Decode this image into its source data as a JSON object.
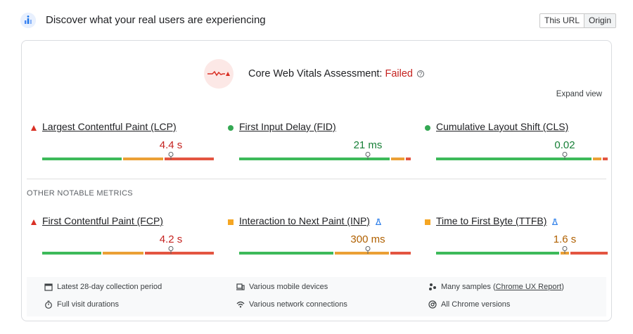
{
  "header": {
    "title": "Discover what your real users are experiencing",
    "icon": "users-chart-icon"
  },
  "toggle": {
    "options": [
      "This URL",
      "Origin"
    ],
    "selected": "Origin"
  },
  "assessment": {
    "label": "Core Web Vitals Assessment:",
    "status": "Failed",
    "status_color": "#c5221f",
    "icon": "vitals-pulse-icon"
  },
  "expand_label": "Expand view",
  "colors": {
    "good": "#0cce6b",
    "needs_improvement": "#ffa400",
    "poor": "#ff4e42"
  },
  "core_metrics": [
    {
      "name": "Largest Contentful Paint (LCP)",
      "value": "4.4 s",
      "rating": "poor",
      "distribution": [
        0.47,
        0.24,
        0.29
      ],
      "marker": 0.75
    },
    {
      "name": "First Input Delay (FID)",
      "value": "21 ms",
      "rating": "good",
      "distribution": [
        0.89,
        0.08,
        0.03
      ],
      "marker": 0.75
    },
    {
      "name": "Cumulative Layout Shift (CLS)",
      "value": "0.02",
      "rating": "good",
      "distribution": [
        0.92,
        0.05,
        0.03
      ],
      "marker": 0.75
    }
  ],
  "other_label": "OTHER NOTABLE METRICS",
  "other_metrics": [
    {
      "name": "First Contentful Paint (FCP)",
      "value": "4.2 s",
      "rating": "poor",
      "experimental": false,
      "distribution": [
        0.35,
        0.24,
        0.41
      ],
      "marker": 0.75
    },
    {
      "name": "Interaction to Next Paint (INP)",
      "value": "300 ms",
      "rating": "needs-improvement",
      "experimental": true,
      "distribution": [
        0.56,
        0.32,
        0.12
      ],
      "marker": 0.75
    },
    {
      "name": "Time to First Byte (TTFB)",
      "value": "1.6 s",
      "rating": "needs-improvement",
      "experimental": true,
      "distribution": [
        0.73,
        0.05,
        0.22
      ],
      "marker": 0.75
    }
  ],
  "footer": {
    "collection_period": "Latest 28-day collection period",
    "devices": "Various mobile devices",
    "samples_prefix": "Many samples (",
    "samples_link": "Chrome UX Report",
    "samples_suffix": ")",
    "durations": "Full visit durations",
    "network": "Various network connections",
    "chrome_versions": "All Chrome versions"
  }
}
